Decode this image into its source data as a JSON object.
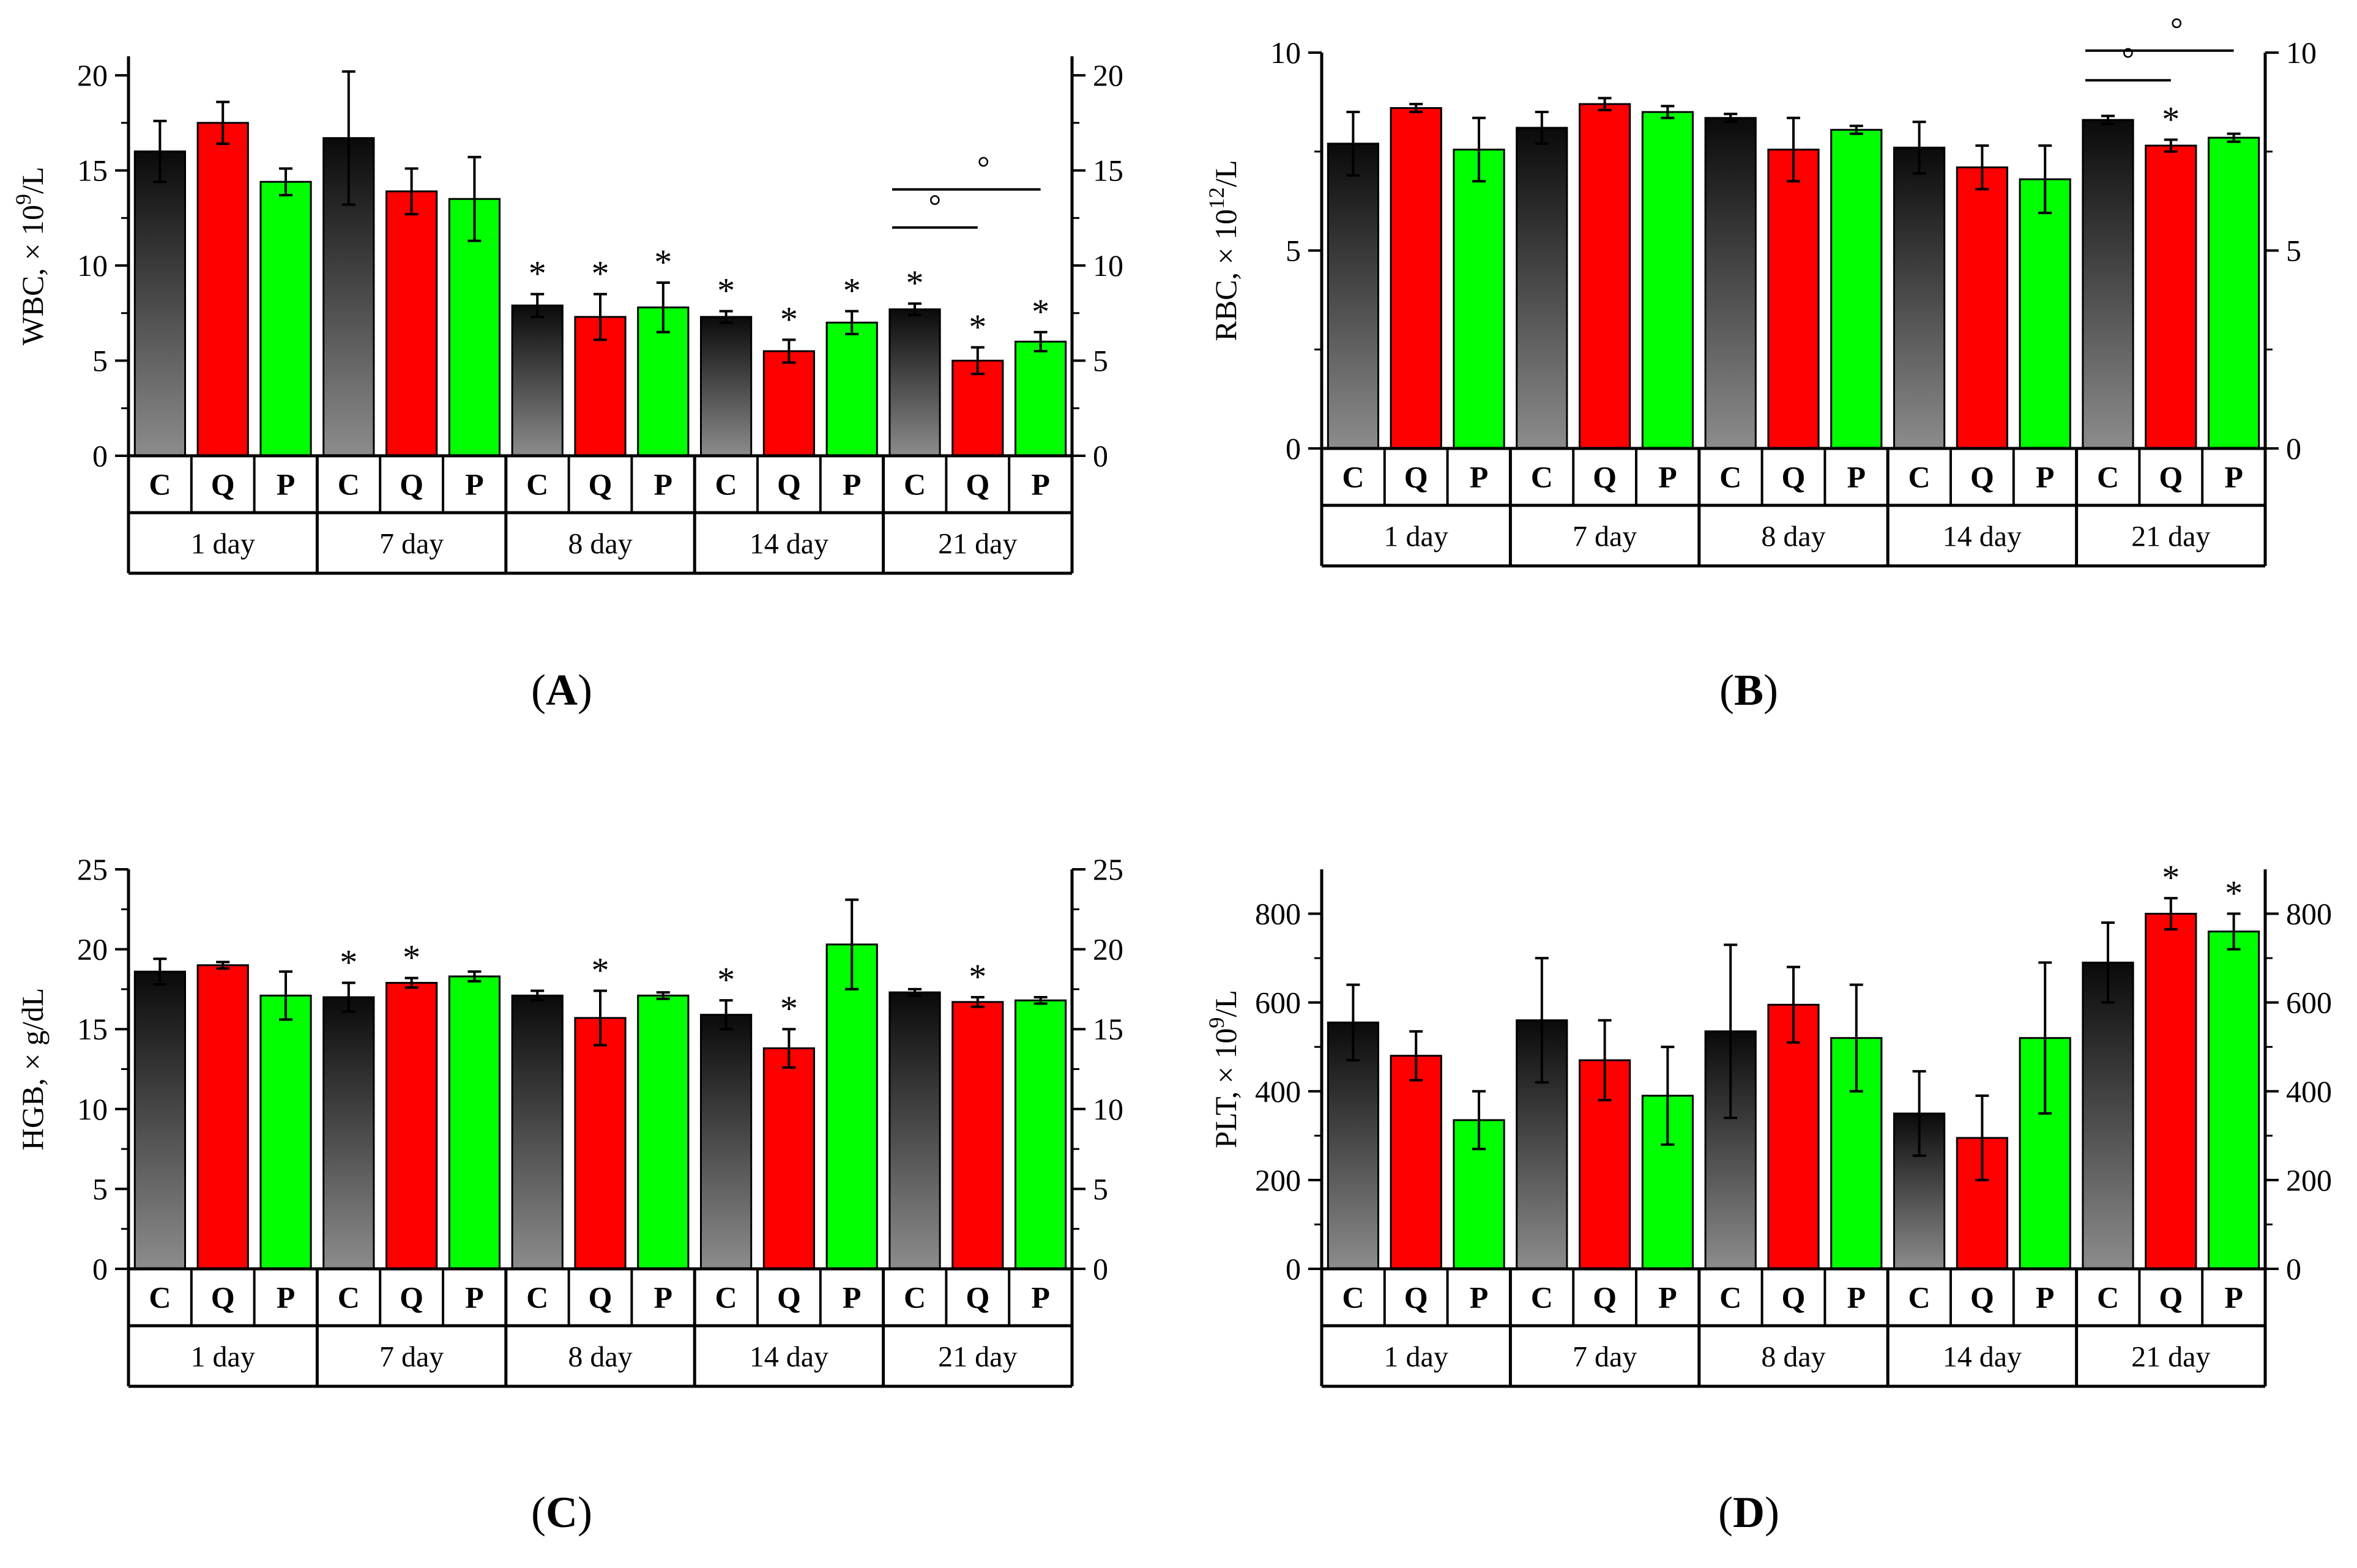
{
  "colors": {
    "C_top": "#0a0a0a",
    "C_bottom": "#8c8c8c",
    "Q": "#ff0000",
    "P": "#00ff00",
    "axis": "#000000"
  },
  "group_letters": [
    "C",
    "Q",
    "P"
  ],
  "days": [
    "1 day",
    "7 day",
    "8 day",
    "14 day",
    "21 day"
  ],
  "chart_data": [
    {
      "type": "bar",
      "panel_label_prefix": "(",
      "panel_label_letter": "A",
      "panel_label_suffix": ")",
      "ylabel_main": "WBC, × 10",
      "ylabel_sup": "9",
      "ylabel_tail": "/L",
      "ylim": [
        0,
        21
      ],
      "yticks": [
        0,
        5,
        10,
        15,
        20
      ],
      "categories": [
        "1 day",
        "7 day",
        "8 day",
        "14 day",
        "21 day"
      ],
      "series": [
        {
          "name": "C",
          "values": [
            16.0,
            16.7,
            7.9,
            7.3,
            7.7
          ],
          "errors": [
            1.6,
            3.5,
            0.6,
            0.3,
            0.3
          ],
          "stars": [
            false,
            false,
            true,
            true,
            true
          ]
        },
        {
          "name": "Q",
          "values": [
            17.5,
            13.9,
            7.3,
            5.5,
            5.0
          ],
          "errors": [
            1.1,
            1.2,
            1.2,
            0.6,
            0.7
          ],
          "stars": [
            false,
            false,
            true,
            true,
            true
          ]
        },
        {
          "name": "P",
          "values": [
            14.4,
            13.5,
            7.8,
            7.0,
            6.0
          ],
          "errors": [
            0.7,
            2.2,
            1.3,
            0.6,
            0.5
          ],
          "stars": [
            false,
            false,
            true,
            true,
            true
          ]
        }
      ],
      "brackets": [
        {
          "day": 4,
          "from": 0,
          "to": 1,
          "y": 12.0,
          "mark": "°"
        },
        {
          "day": 4,
          "from": 0,
          "to": 2,
          "y": 14.0,
          "mark": "°"
        }
      ]
    },
    {
      "type": "bar",
      "panel_label_prefix": "(",
      "panel_label_letter": "B",
      "panel_label_suffix": ")",
      "ylabel_main": "RBC, × 10",
      "ylabel_sup": "12",
      "ylabel_tail": "/L",
      "ylim": [
        0,
        10
      ],
      "yticks": [
        0,
        5,
        10
      ],
      "categories": [
        "1 day",
        "7 day",
        "8 day",
        "14 day",
        "21 day"
      ],
      "series": [
        {
          "name": "C",
          "values": [
            7.7,
            8.1,
            8.35,
            7.6,
            8.3
          ],
          "errors": [
            0.8,
            0.4,
            0.1,
            0.65,
            0.1
          ],
          "stars": [
            false,
            false,
            false,
            false,
            false
          ]
        },
        {
          "name": "Q",
          "values": [
            8.6,
            8.7,
            7.55,
            7.1,
            7.65
          ],
          "errors": [
            0.1,
            0.15,
            0.8,
            0.55,
            0.15
          ],
          "stars": [
            false,
            false,
            false,
            false,
            true
          ]
        },
        {
          "name": "P",
          "values": [
            7.55,
            8.5,
            8.05,
            6.8,
            7.85
          ],
          "errors": [
            0.8,
            0.15,
            0.1,
            0.85,
            0.1
          ],
          "stars": [
            false,
            false,
            false,
            false,
            false
          ]
        }
      ],
      "brackets": [
        {
          "day": 4,
          "from": 0,
          "to": 1,
          "y": 9.3,
          "mark": "°"
        },
        {
          "day": 4,
          "from": 0,
          "to": 2,
          "y": 10.05,
          "mark": "°"
        }
      ]
    },
    {
      "type": "bar",
      "panel_label_prefix": "(",
      "panel_label_letter": "C",
      "panel_label_suffix": ")",
      "ylabel_main": "HGB, × g/dL",
      "ylabel_sup": "",
      "ylabel_tail": "",
      "ylim": [
        0,
        25
      ],
      "yticks": [
        0,
        5,
        10,
        15,
        20,
        25
      ],
      "categories": [
        "1 day",
        "7 day",
        "8 day",
        "14 day",
        "21 day"
      ],
      "series": [
        {
          "name": "C",
          "values": [
            18.6,
            17.0,
            17.1,
            15.9,
            17.3
          ],
          "errors": [
            0.8,
            0.9,
            0.3,
            0.9,
            0.2
          ],
          "stars": [
            false,
            true,
            false,
            true,
            false
          ]
        },
        {
          "name": "Q",
          "values": [
            19.0,
            17.9,
            15.7,
            13.8,
            16.7
          ],
          "errors": [
            0.2,
            0.3,
            1.7,
            1.2,
            0.3
          ],
          "stars": [
            false,
            true,
            true,
            true,
            true
          ]
        },
        {
          "name": "P",
          "values": [
            17.1,
            18.3,
            17.1,
            20.3,
            16.8
          ],
          "errors": [
            1.5,
            0.3,
            0.2,
            2.8,
            0.2
          ],
          "stars": [
            false,
            false,
            false,
            false,
            false
          ]
        }
      ],
      "brackets": []
    },
    {
      "type": "bar",
      "panel_label_prefix": "(",
      "panel_label_letter": "D",
      "panel_label_suffix": ")",
      "ylabel_main": "PLT, × 10",
      "ylabel_sup": "9",
      "ylabel_tail": "/L",
      "ylim": [
        0,
        900
      ],
      "yticks": [
        0,
        200,
        400,
        600,
        800
      ],
      "categories": [
        "1 day",
        "7 day",
        "8 day",
        "14 day",
        "21 day"
      ],
      "series": [
        {
          "name": "C",
          "values": [
            555,
            560,
            535,
            350,
            690
          ],
          "errors": [
            85,
            140,
            195,
            95,
            90
          ],
          "stars": [
            false,
            false,
            false,
            false,
            false
          ]
        },
        {
          "name": "Q",
          "values": [
            480,
            470,
            595,
            295,
            800
          ],
          "errors": [
            55,
            90,
            85,
            95,
            35
          ],
          "stars": [
            false,
            false,
            false,
            false,
            true
          ]
        },
        {
          "name": "P",
          "values": [
            335,
            390,
            520,
            520,
            760
          ],
          "errors": [
            65,
            110,
            120,
            170,
            40
          ],
          "stars": [
            false,
            false,
            false,
            false,
            true
          ]
        }
      ],
      "brackets": []
    }
  ]
}
